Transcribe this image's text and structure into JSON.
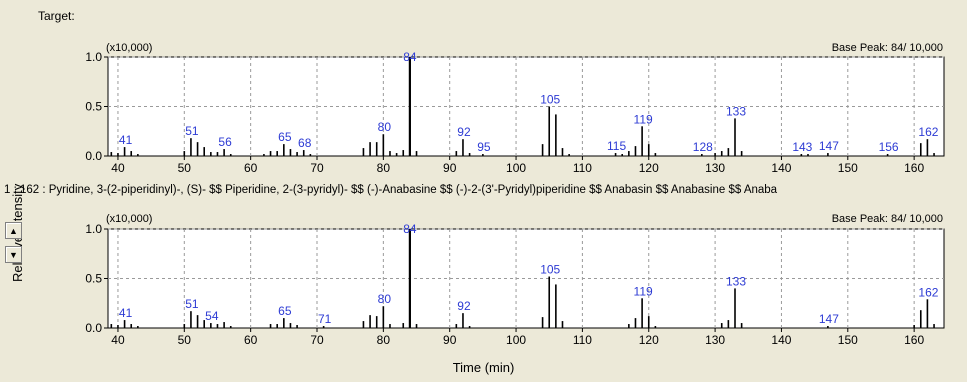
{
  "target_label": "Target:",
  "hit_text": "1 : 162 : Pyridine, 3-(2-piperidinyl)-, (S)- $$ Piperidine, 2-(3-pyridyl)- $$ (-)-Anabasine $$ (-)-2-(3'-Pyridyl)piperidine $$ Anabasin $$ Anabasine $$ Anaba",
  "buttons": {
    "up_icon": "▲",
    "down_icon": "▼"
  },
  "chart_data": [
    {
      "type": "bar",
      "name": "target-spectrum",
      "scale_label": "(x10,000)",
      "base_peak": "Base Peak: 84/ 10,000",
      "xlabel": "Time (min)",
      "ylabel": "Relative intensity",
      "xlim": [
        38.5,
        164.5
      ],
      "ylim": [
        0,
        1.0
      ],
      "xticks": [
        40,
        50,
        60,
        70,
        80,
        90,
        100,
        110,
        120,
        130,
        140,
        150,
        160
      ],
      "yticks": [
        0.0,
        0.5,
        1.0
      ],
      "ytick_labels": [
        "0.0",
        "0.5",
        "1.0"
      ],
      "grid": true,
      "peaks": [
        [
          39,
          0.04
        ],
        [
          40,
          0.03
        ],
        [
          41,
          0.09
        ],
        [
          42,
          0.05
        ],
        [
          43,
          0.02
        ],
        [
          50,
          0.05
        ],
        [
          51,
          0.18
        ],
        [
          52,
          0.14
        ],
        [
          53,
          0.09
        ],
        [
          54,
          0.04
        ],
        [
          55,
          0.04
        ],
        [
          56,
          0.07
        ],
        [
          57,
          0.02
        ],
        [
          62,
          0.02
        ],
        [
          63,
          0.05
        ],
        [
          64,
          0.05
        ],
        [
          65,
          0.12
        ],
        [
          66,
          0.07
        ],
        [
          67,
          0.04
        ],
        [
          68,
          0.06
        ],
        [
          69,
          0.02
        ],
        [
          77,
          0.08
        ],
        [
          78,
          0.14
        ],
        [
          79,
          0.14
        ],
        [
          80,
          0.22
        ],
        [
          81,
          0.05
        ],
        [
          82,
          0.03
        ],
        [
          83,
          0.06
        ],
        [
          84,
          1.0
        ],
        [
          85,
          0.05
        ],
        [
          91,
          0.05
        ],
        [
          92,
          0.17
        ],
        [
          93,
          0.03
        ],
        [
          95,
          0.02
        ],
        [
          104,
          0.12
        ],
        [
          105,
          0.5
        ],
        [
          106,
          0.42
        ],
        [
          107,
          0.08
        ],
        [
          108,
          0.02
        ],
        [
          115,
          0.03
        ],
        [
          116,
          0.02
        ],
        [
          117,
          0.05
        ],
        [
          118,
          0.1
        ],
        [
          119,
          0.3
        ],
        [
          120,
          0.12
        ],
        [
          121,
          0.03
        ],
        [
          128,
          0.02
        ],
        [
          130,
          0.03
        ],
        [
          131,
          0.05
        ],
        [
          132,
          0.08
        ],
        [
          133,
          0.38
        ],
        [
          134,
          0.05
        ],
        [
          143,
          0.02
        ],
        [
          144,
          0.02
        ],
        [
          147,
          0.03
        ],
        [
          156,
          0.02
        ],
        [
          161,
          0.13
        ],
        [
          162,
          0.17
        ],
        [
          163,
          0.03
        ]
      ],
      "peak_labels": [
        {
          "x": 41,
          "text": "41"
        },
        {
          "x": 51,
          "text": "51"
        },
        {
          "x": 56,
          "text": "56"
        },
        {
          "x": 65,
          "text": "65"
        },
        {
          "x": 68,
          "text": "68"
        },
        {
          "x": 80,
          "text": "80"
        },
        {
          "x": 84,
          "text": "84"
        },
        {
          "x": 92,
          "text": "92"
        },
        {
          "x": 95,
          "text": "95"
        },
        {
          "x": 105,
          "text": "105"
        },
        {
          "x": 115,
          "text": "115"
        },
        {
          "x": 119,
          "text": "119"
        },
        {
          "x": 128,
          "text": "128"
        },
        {
          "x": 133,
          "text": "133"
        },
        {
          "x": 143,
          "text": "143"
        },
        {
          "x": 147,
          "text": "147"
        },
        {
          "x": 156,
          "text": "156"
        },
        {
          "x": 162,
          "text": "162"
        }
      ]
    },
    {
      "type": "bar",
      "name": "library-hit-spectrum",
      "scale_label": "(x10,000)",
      "base_peak": "Base Peak: 84/ 10,000",
      "xlabel": "Time (min)",
      "ylabel": "Relative intensity",
      "xlim": [
        38.5,
        164.5
      ],
      "ylim": [
        0,
        1.0
      ],
      "xticks": [
        40,
        50,
        60,
        70,
        80,
        90,
        100,
        110,
        120,
        130,
        140,
        150,
        160
      ],
      "yticks": [
        0.0,
        0.5,
        1.0
      ],
      "ytick_labels": [
        "0.0",
        "0.5",
        "1.0"
      ],
      "grid": true,
      "peaks": [
        [
          39,
          0.04
        ],
        [
          40,
          0.03
        ],
        [
          41,
          0.08
        ],
        [
          42,
          0.04
        ],
        [
          43,
          0.02
        ],
        [
          50,
          0.04
        ],
        [
          51,
          0.17
        ],
        [
          52,
          0.13
        ],
        [
          53,
          0.08
        ],
        [
          54,
          0.05
        ],
        [
          55,
          0.04
        ],
        [
          56,
          0.06
        ],
        [
          57,
          0.02
        ],
        [
          63,
          0.04
        ],
        [
          64,
          0.04
        ],
        [
          65,
          0.1
        ],
        [
          66,
          0.05
        ],
        [
          67,
          0.03
        ],
        [
          71,
          0.02
        ],
        [
          77,
          0.07
        ],
        [
          78,
          0.13
        ],
        [
          79,
          0.12
        ],
        [
          80,
          0.22
        ],
        [
          81,
          0.04
        ],
        [
          83,
          0.05
        ],
        [
          84,
          1.0
        ],
        [
          85,
          0.04
        ],
        [
          91,
          0.04
        ],
        [
          92,
          0.15
        ],
        [
          93,
          0.02
        ],
        [
          104,
          0.11
        ],
        [
          105,
          0.52
        ],
        [
          106,
          0.44
        ],
        [
          107,
          0.07
        ],
        [
          117,
          0.04
        ],
        [
          118,
          0.1
        ],
        [
          119,
          0.3
        ],
        [
          120,
          0.12
        ],
        [
          121,
          0.02
        ],
        [
          131,
          0.05
        ],
        [
          132,
          0.08
        ],
        [
          133,
          0.4
        ],
        [
          134,
          0.05
        ],
        [
          147,
          0.02
        ],
        [
          160,
          0.03
        ],
        [
          161,
          0.18
        ],
        [
          162,
          0.29
        ],
        [
          163,
          0.04
        ]
      ],
      "peak_labels": [
        {
          "x": 41,
          "text": "41"
        },
        {
          "x": 51,
          "text": "51"
        },
        {
          "x": 54,
          "text": "54"
        },
        {
          "x": 65,
          "text": "65"
        },
        {
          "x": 71,
          "text": "71"
        },
        {
          "x": 80,
          "text": "80"
        },
        {
          "x": 84,
          "text": "84"
        },
        {
          "x": 92,
          "text": "92"
        },
        {
          "x": 105,
          "text": "105"
        },
        {
          "x": 119,
          "text": "119"
        },
        {
          "x": 133,
          "text": "133"
        },
        {
          "x": 147,
          "text": "147"
        },
        {
          "x": 162,
          "text": "162"
        }
      ]
    }
  ]
}
